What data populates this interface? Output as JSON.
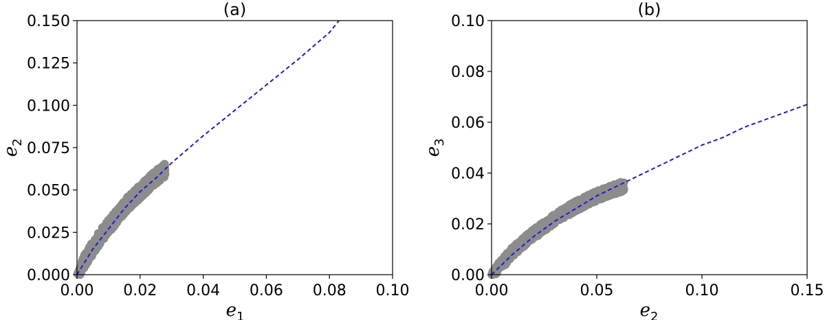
{
  "chart_data": [
    {
      "type": "scatter",
      "title": "(a)",
      "xlabel": "e1",
      "ylabel": "e2",
      "xlim": [
        0,
        0.1
      ],
      "ylim": [
        0,
        0.15
      ],
      "xticks": [
        "0.00",
        "0.02",
        "0.04",
        "0.06",
        "0.08",
        "0.10"
      ],
      "yticks": [
        "0.000",
        "0.025",
        "0.050",
        "0.075",
        "0.100",
        "0.125",
        "0.150"
      ],
      "grid": false,
      "scatter_color": "#8c8c8c",
      "fit_color": "#1a1adb",
      "scatter": {
        "x_range": [
          0.0,
          0.028
        ],
        "y_fit": [
          [
            0.0,
            0.0
          ],
          [
            0.004,
            0.013
          ],
          [
            0.008,
            0.024
          ],
          [
            0.012,
            0.033
          ],
          [
            0.016,
            0.042
          ],
          [
            0.02,
            0.049
          ],
          [
            0.024,
            0.056
          ],
          [
            0.028,
            0.062
          ]
        ],
        "band_halfwidth": 0.004
      },
      "fit_curve": [
        [
          0.0,
          0.0
        ],
        [
          0.005,
          0.015
        ],
        [
          0.01,
          0.027
        ],
        [
          0.015,
          0.039
        ],
        [
          0.02,
          0.049
        ],
        [
          0.025,
          0.057
        ],
        [
          0.03,
          0.066
        ],
        [
          0.04,
          0.082
        ],
        [
          0.05,
          0.097
        ],
        [
          0.06,
          0.112
        ],
        [
          0.07,
          0.127
        ],
        [
          0.08,
          0.143
        ],
        [
          0.083,
          0.15
        ]
      ]
    },
    {
      "type": "scatter",
      "title": "(b)",
      "xlabel": "e2",
      "ylabel": "e3",
      "xlim": [
        0,
        0.15
      ],
      "ylim": [
        0,
        0.1
      ],
      "xticks": [
        "0.00",
        "0.05",
        "0.10",
        "0.15"
      ],
      "yticks": [
        "0.00",
        "0.02",
        "0.04",
        "0.06",
        "0.08",
        "0.10"
      ],
      "grid": false,
      "scatter_color": "#8c8c8c",
      "fit_color": "#1a1adb",
      "scatter": {
        "x_range": [
          0.0,
          0.063
        ],
        "y_fit": [
          [
            0.0,
            0.0
          ],
          [
            0.01,
            0.009
          ],
          [
            0.02,
            0.016
          ],
          [
            0.03,
            0.022
          ],
          [
            0.04,
            0.027
          ],
          [
            0.05,
            0.031
          ],
          [
            0.063,
            0.035
          ]
        ],
        "band_halfwidth": 0.002
      },
      "fit_curve": [
        [
          0.0,
          0.0
        ],
        [
          0.01,
          0.008
        ],
        [
          0.02,
          0.015
        ],
        [
          0.03,
          0.021
        ],
        [
          0.04,
          0.026
        ],
        [
          0.05,
          0.031
        ],
        [
          0.06,
          0.035
        ],
        [
          0.07,
          0.039
        ],
        [
          0.08,
          0.043
        ],
        [
          0.09,
          0.047
        ],
        [
          0.1,
          0.051
        ],
        [
          0.11,
          0.054
        ],
        [
          0.12,
          0.058
        ],
        [
          0.13,
          0.061
        ],
        [
          0.14,
          0.064
        ],
        [
          0.15,
          0.067
        ]
      ]
    }
  ]
}
